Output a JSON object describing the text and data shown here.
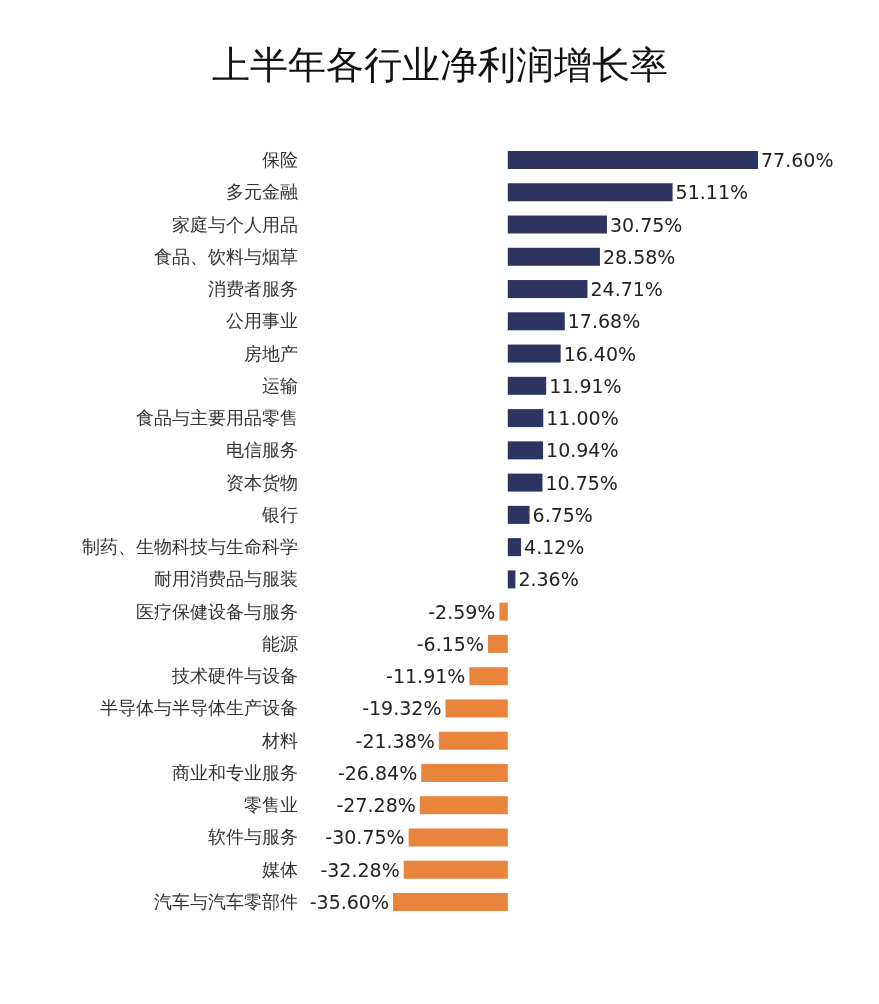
{
  "chart_data": {
    "type": "bar",
    "orientation": "horizontal",
    "title": "上半年各行业净利润增长率",
    "categories": [
      "保险",
      "多元金融",
      "家庭与个人用品",
      "食品、饮料与烟草",
      "消费者服务",
      "公用事业",
      "房地产",
      "运输",
      "食品与主要用品零售",
      "电信服务",
      "资本货物",
      "银行",
      "制药、生物科技与生命科学",
      "耐用消费品与服装",
      "医疗保健设备与服务",
      "能源",
      "技术硬件与设备",
      "半导体与半导体生产设备",
      "材料",
      "商业和专业服务",
      "零售业",
      "软件与服务",
      "媒体",
      "汽车与汽车零部件"
    ],
    "values": [
      77.6,
      51.11,
      30.75,
      28.58,
      24.71,
      17.68,
      16.4,
      11.91,
      11.0,
      10.94,
      10.75,
      6.75,
      4.12,
      2.36,
      -2.59,
      -6.15,
      -11.91,
      -19.32,
      -21.38,
      -26.84,
      -27.28,
      -30.75,
      -32.28,
      -35.6
    ],
    "value_labels": [
      "77.60%",
      "51.11%",
      "30.75%",
      "28.58%",
      "24.71%",
      "17.68%",
      "16.40%",
      "11.91%",
      "11.00%",
      "10.94%",
      "10.75%",
      "6.75%",
      "4.12%",
      "2.36%",
      "-2.59%",
      "-6.15%",
      "-11.91%",
      "-19.32%",
      "-21.38%",
      "-26.84%",
      "-27.28%",
      "-30.75%",
      "-32.28%",
      "-35.60%"
    ],
    "colors": [
      "#2d3462",
      "#2d3462",
      "#2d3462",
      "#2d3462",
      "#2d3462",
      "#2d3462",
      "#2d3462",
      "#2d3462",
      "#2d3462",
      "#2d3462",
      "#2d3462",
      "#2d3462",
      "#2d3462",
      "#2d3462",
      "#e8843c",
      "#e8843c",
      "#e8843c",
      "#e8843c",
      "#e8843c",
      "#e8843c",
      "#e8843c",
      "#e8843c",
      "#e8843c",
      "#e8843c"
    ]
  }
}
